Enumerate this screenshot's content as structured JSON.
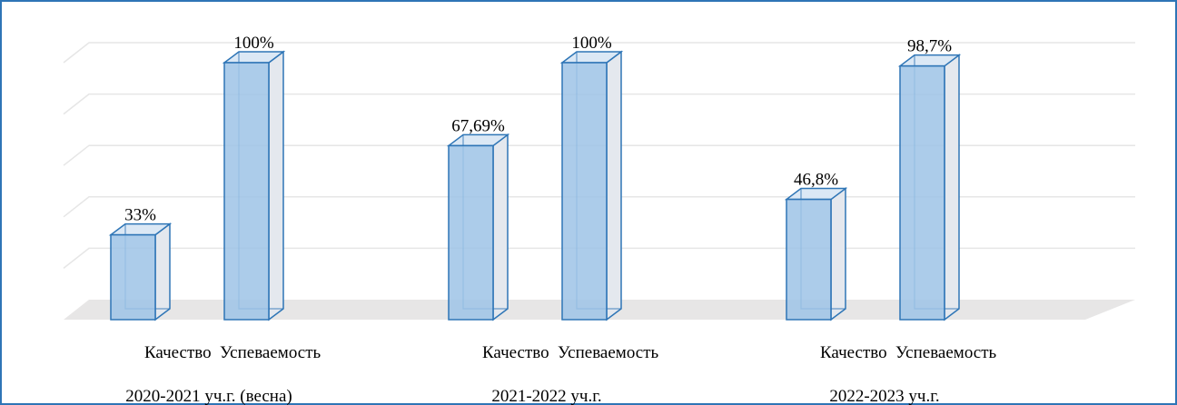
{
  "chart_data": {
    "type": "bar3d",
    "categories": [
      "2020-2021 уч.г. (весна)",
      "2021-2022 уч.г.",
      "2022-2023 уч.г."
    ],
    "series": [
      {
        "name": "Качество",
        "color": "#9dc3e6",
        "values": [
          33,
          67.69,
          46.8
        ],
        "value_labels": [
          "33%",
          "67,69%",
          "46,8%"
        ]
      },
      {
        "name": "Успеваемость",
        "color": "#9dc3e6",
        "values": [
          100,
          100,
          98.7
        ],
        "value_labels": [
          "100%",
          "100%",
          "98,7%"
        ]
      }
    ],
    "ylim": [
      0,
      100
    ],
    "yticks": [
      0,
      20,
      40,
      60,
      80,
      100
    ],
    "grid": true
  }
}
